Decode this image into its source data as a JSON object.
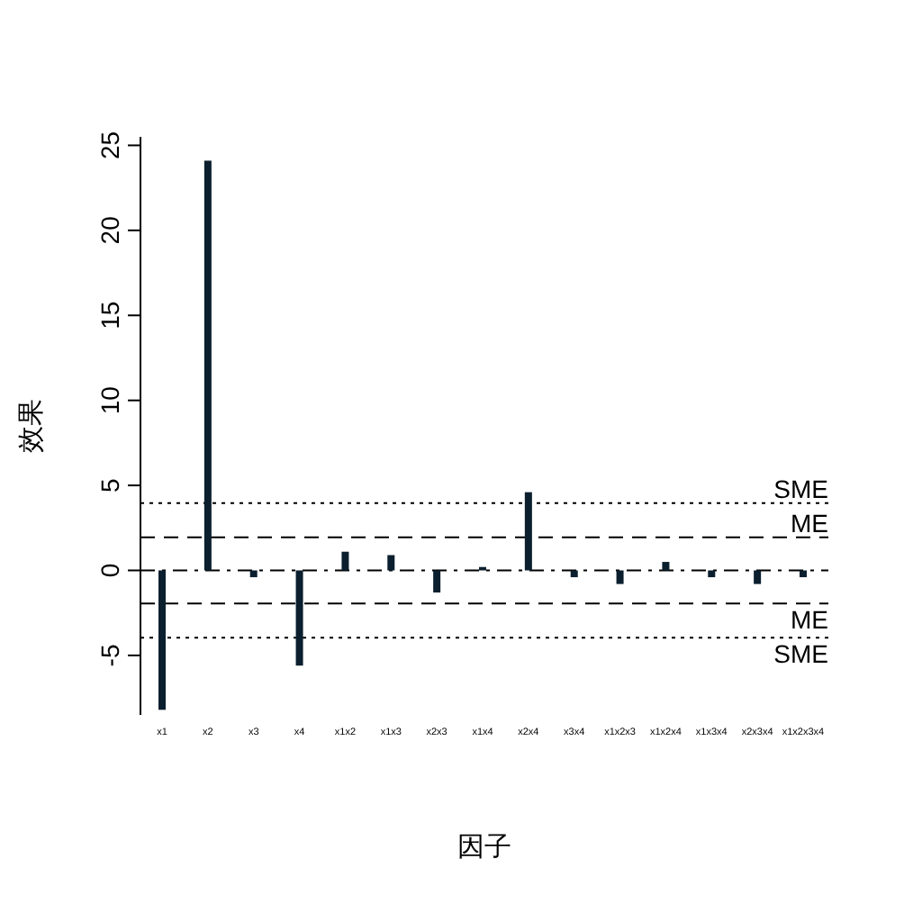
{
  "chart_data": {
    "type": "bar",
    "xlabel": "因子",
    "ylabel": "效果",
    "categories": [
      "x1",
      "x2",
      "x3",
      "x4",
      "x1x2",
      "x1x3",
      "x2x3",
      "x1x4",
      "x2x4",
      "x3x4",
      "x1x2x3",
      "x1x2x4",
      "x1x3x4",
      "x2x3x4",
      "x1x2x3x4"
    ],
    "series": [
      {
        "color": "#0b1f2e",
        "values": [
          -8.2,
          24.1,
          -0.4,
          -5.6,
          1.1,
          0.9,
          -1.3,
          0.2,
          4.6,
          -0.4,
          -0.8,
          0.5,
          -0.4,
          -0.8,
          -0.4
        ]
      }
    ],
    "ylim": [
      -8.5,
      25.5
    ],
    "yticks": [
      -5,
      0,
      5,
      10,
      15,
      20,
      25
    ],
    "grid": false,
    "ref_lines": [
      {
        "axis": "y",
        "value": 0,
        "line_style": "dashdot",
        "color": "#000000"
      },
      {
        "axis": "y",
        "value": 1.94,
        "label": "ME",
        "line_style": "dashed",
        "color": "#000000"
      },
      {
        "axis": "y",
        "value": -1.94,
        "label": "ME",
        "line_style": "dashed",
        "color": "#000000"
      },
      {
        "axis": "y",
        "value": 3.96,
        "label": "SME",
        "line_style": "dotted",
        "color": "#000000"
      },
      {
        "axis": "y",
        "value": -3.96,
        "label": "SME",
        "line_style": "dotted",
        "color": "#000000"
      }
    ]
  }
}
